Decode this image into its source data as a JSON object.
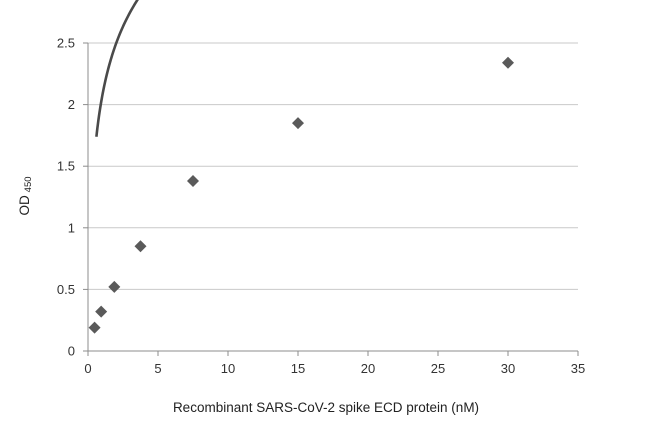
{
  "chart_data": {
    "type": "scatter",
    "title": "",
    "xlabel": "Recombinant SARS-CoV-2 spike ECD protein (nM)",
    "ylabel": "OD",
    "ylabel_subscript": "450",
    "xlim": [
      0,
      35
    ],
    "ylim": [
      0,
      2.5
    ],
    "x_ticks": [
      "0",
      "5",
      "10",
      "15",
      "20",
      "25",
      "30",
      "35"
    ],
    "y_ticks": [
      "0",
      "0.5",
      "1",
      "1.5",
      "2",
      "2.5"
    ],
    "grid": "horizontal",
    "marker_color": "#5a5a5a",
    "line_color": "#4a4a4a",
    "series": [
      {
        "marker": "diamond",
        "x": [
          0.47,
          0.94,
          1.88,
          3.75,
          7.5,
          15,
          30
        ],
        "y": [
          0.19,
          0.32,
          0.52,
          0.85,
          1.38,
          1.85,
          2.34
        ]
      }
    ],
    "trendline": {
      "type": "logarithmic",
      "a": 0.6267,
      "b": 0.0374,
      "x_range": [
        0.6,
        30
      ]
    }
  }
}
